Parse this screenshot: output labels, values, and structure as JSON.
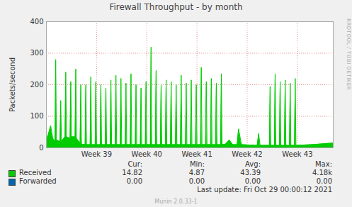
{
  "chart_data": {
    "type": "area",
    "title": "Firewall Throughput - by month",
    "y_label": "Packets/second",
    "x": [
      0.0,
      0.3,
      0.6,
      0.9,
      1.2,
      1.3,
      1.4,
      1.9,
      2.0,
      2.1,
      2.6,
      2.7,
      2.8,
      3.3,
      3.4,
      3.5,
      4.0,
      4.1,
      4.2,
      4.7,
      4.8,
      4.9,
      5.4,
      5.5,
      5.6,
      6.1,
      6.2,
      6.3,
      6.8,
      6.9,
      7.0,
      7.5,
      7.6,
      7.7,
      8.2,
      8.3,
      8.4,
      8.9,
      9.0,
      9.1,
      9.6,
      9.7,
      9.8,
      10.3,
      10.4,
      10.5,
      11.0,
      11.1,
      11.2,
      11.7,
      11.8,
      11.9,
      12.4,
      12.5,
      12.6,
      13.1,
      13.2,
      13.3,
      13.8,
      13.9,
      14.0,
      14.5,
      14.6,
      14.7,
      15.2,
      15.3,
      15.4,
      15.9,
      16.0,
      16.1,
      16.6,
      16.7,
      16.8,
      17.3,
      17.4,
      17.5,
      18.0,
      18.1,
      18.2,
      18.7,
      18.8,
      18.9,
      19.4,
      19.5,
      19.6,
      20.1,
      20.2,
      20.3,
      20.8,
      20.9,
      21.0,
      21.5,
      21.6,
      21.7,
      22.2,
      22.3,
      22.4,
      22.9,
      23.0,
      23.1,
      23.6,
      23.7,
      23.8,
      24.3,
      24.4,
      24.5,
      25.0,
      25.5,
      26.0,
      26.6,
      26.8,
      27.2,
      29.4,
      29.6,
      29.8,
      31.1,
      31.2,
      31.3,
      31.8,
      31.9,
      32.0,
      32.5,
      32.6,
      32.7,
      33.2,
      33.3,
      33.4,
      33.9,
      34.0,
      34.1,
      34.6,
      34.7,
      34.8,
      37.0,
      40.0
    ],
    "series": [
      {
        "name": "Received",
        "color": "#00cc00",
        "values": [
          25,
          45,
          70,
          30,
          20,
          280,
          25,
          20,
          150,
          20,
          35,
          240,
          35,
          30,
          210,
          35,
          35,
          250,
          30,
          15,
          200,
          12,
          10,
          200,
          10,
          10,
          225,
          10,
          10,
          210,
          10,
          10,
          200,
          10,
          10,
          190,
          10,
          10,
          215,
          10,
          10,
          230,
          10,
          10,
          220,
          10,
          10,
          205,
          10,
          10,
          235,
          10,
          10,
          200,
          10,
          10,
          190,
          10,
          10,
          210,
          10,
          10,
          320,
          10,
          10,
          245,
          10,
          10,
          200,
          10,
          10,
          215,
          10,
          10,
          210,
          10,
          10,
          200,
          10,
          10,
          230,
          10,
          10,
          205,
          10,
          10,
          215,
          10,
          10,
          200,
          10,
          10,
          255,
          10,
          10,
          210,
          10,
          10,
          220,
          10,
          10,
          205,
          10,
          10,
          235,
          10,
          12,
          25,
          10,
          10,
          60,
          10,
          8,
          45,
          8,
          8,
          195,
          8,
          8,
          235,
          8,
          8,
          210,
          8,
          8,
          215,
          8,
          8,
          205,
          8,
          8,
          220,
          8,
          10,
          15
        ]
      },
      {
        "name": "Forwarded",
        "color": "#0066b3",
        "x": [
          0,
          40
        ],
        "values": [
          0,
          0
        ]
      }
    ],
    "xlim": [
      0,
      40
    ],
    "xticks": [
      {
        "value": 7,
        "label": "Week 39"
      },
      {
        "value": 14,
        "label": "Week 40"
      },
      {
        "value": 21,
        "label": "Week 41"
      },
      {
        "value": 28,
        "label": "Week 42"
      },
      {
        "value": 35,
        "label": "Week 43"
      }
    ],
    "ylim": [
      0,
      400
    ],
    "yticks": [
      0,
      100,
      200,
      300,
      400
    ],
    "grid": true,
    "stats": {
      "columns": [
        "Cur:",
        "Min:",
        "Avg:",
        "Max:"
      ],
      "rows": [
        {
          "name": "Received",
          "values": [
            14.82,
            4.87,
            43.39,
            4180
          ],
          "value_labels": [
            "14.82",
            "4.87",
            "43.39",
            "4.18k"
          ]
        },
        {
          "name": "Forwarded",
          "values": [
            0,
            0,
            0,
            0
          ],
          "value_labels": [
            "0.00",
            "0.00",
            "0.00",
            "0.00"
          ]
        }
      ]
    },
    "last_update": "Last update: Fri Oct 29 00:00:12 2021",
    "footer": "Munin 2.0.33-1",
    "watermark": "RRDTOOL / TOBI OETIKER"
  }
}
